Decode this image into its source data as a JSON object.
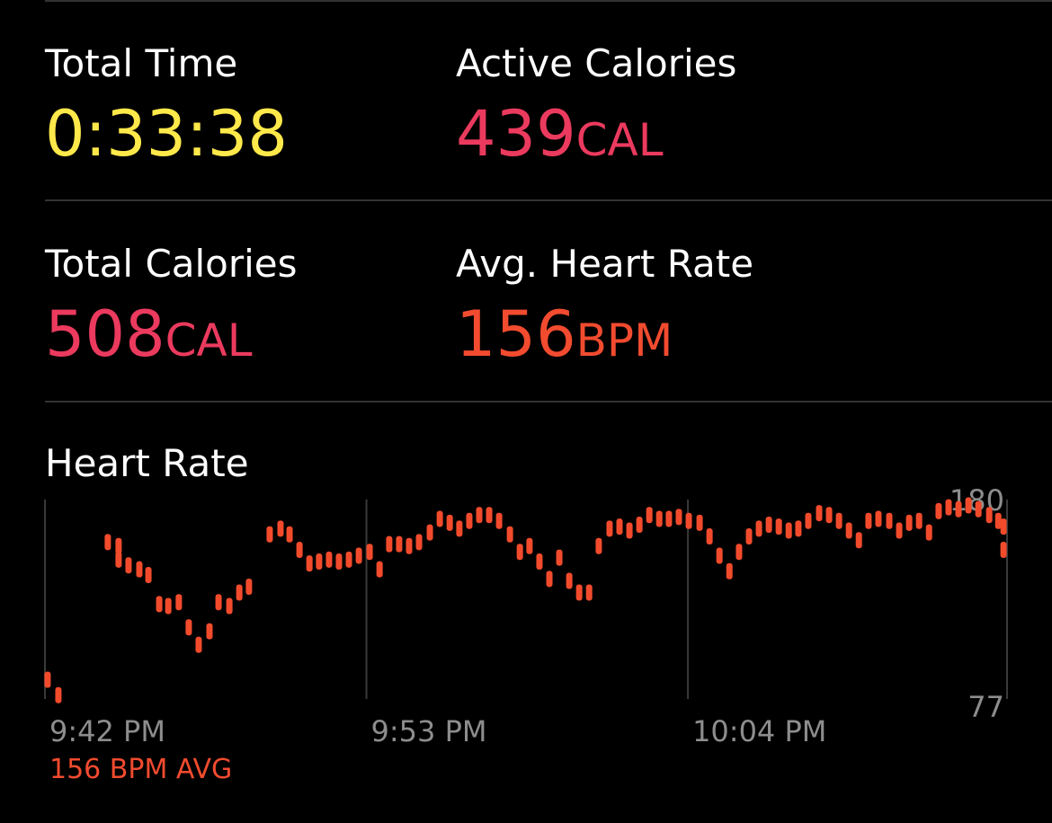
{
  "metrics": [
    {
      "label": "Total Time",
      "value": "0:33:38",
      "color": "#ffe94a"
    },
    {
      "label": "Active Calories",
      "value": 439,
      "unit": "CAL",
      "color": "#eb3a5e"
    },
    {
      "label": "Total Calories",
      "value": 508,
      "unit": "CAL",
      "color": "#eb3a5e"
    },
    {
      "label": "Avg. Heart Rate",
      "value": 156,
      "unit": "BPM",
      "color": "#f24b2f"
    }
  ],
  "chart_data": {
    "type": "scatter",
    "title": "Heart Rate",
    "annotation": "156 BPM AVG",
    "color": "#f24b2c",
    "annotation_color": "#f24b2f",
    "x": [
      1302.09,
      1302.46,
      1304.15,
      1304.52,
      1304.52,
      1304.86,
      1305.23,
      1305.54,
      1305.91,
      1306.22,
      1306.58,
      1306.92,
      1307.26,
      1307.63,
      1307.94,
      1308.31,
      1308.65,
      1308.98,
      1309.69,
      1310.06,
      1310.37,
      1310.71,
      1311.05,
      1311.38,
      1311.72,
      1312.06,
      1312.4,
      1312.74,
      1313.11,
      1313.45,
      1313.78,
      1314.12,
      1314.46,
      1314.8,
      1315.17,
      1315.51,
      1315.85,
      1316.18,
      1316.52,
      1316.86,
      1317.2,
      1317.54,
      1317.91,
      1318.25,
      1318.58,
      1318.92,
      1319.26,
      1319.6,
      1319.94,
      1320.28,
      1320.62,
      1320.95,
      1321.32,
      1321.66,
      1322.0,
      1322.34,
      1322.68,
      1323.02,
      1323.35,
      1323.69,
      1324.03,
      1324.4,
      1324.74,
      1325.08,
      1325.42,
      1325.75,
      1326.09,
      1326.43,
      1326.77,
      1327.11,
      1327.45,
      1327.78,
      1328.12,
      1328.49,
      1328.83,
      1329.17,
      1329.51,
      1329.85,
      1330.18,
      1330.52,
      1330.89,
      1331.23,
      1331.57,
      1331.91,
      1332.25,
      1332.58,
      1332.92,
      1333.26,
      1333.6,
      1333.94,
      1334.31,
      1334.62,
      1334.8,
      1334.8
    ],
    "values": [
      87,
      79,
      158,
      156,
      149,
      146,
      144,
      141,
      126,
      125,
      127,
      114,
      105,
      112,
      127,
      125,
      132,
      135,
      162,
      165,
      162,
      154,
      147,
      148,
      149,
      148,
      149,
      151,
      153,
      144,
      157,
      157,
      156,
      158,
      163,
      170,
      168,
      165,
      169,
      172,
      172,
      169,
      162,
      153,
      156,
      148,
      139,
      150,
      138,
      132,
      132,
      156,
      165,
      166,
      164,
      167,
      172,
      170,
      170,
      171,
      169,
      168,
      161,
      151,
      143,
      153,
      161,
      165,
      167,
      166,
      164,
      165,
      169,
      173,
      172,
      169,
      164,
      159,
      169,
      170,
      169,
      164,
      168,
      169,
      163,
      174,
      176,
      175,
      177,
      175,
      172,
      169,
      166,
      154
    ],
    "xlim": [
      1302,
      1334.92
    ],
    "xticks": [
      {
        "value": 1302,
        "label": "9:42 PM"
      },
      {
        "value": 1313,
        "label": "9:53 PM"
      },
      {
        "value": 1324,
        "label": "10:04 PM"
      }
    ],
    "ylim": [
      77,
      180
    ],
    "yticks": [
      77,
      180
    ],
    "grid": true
  }
}
